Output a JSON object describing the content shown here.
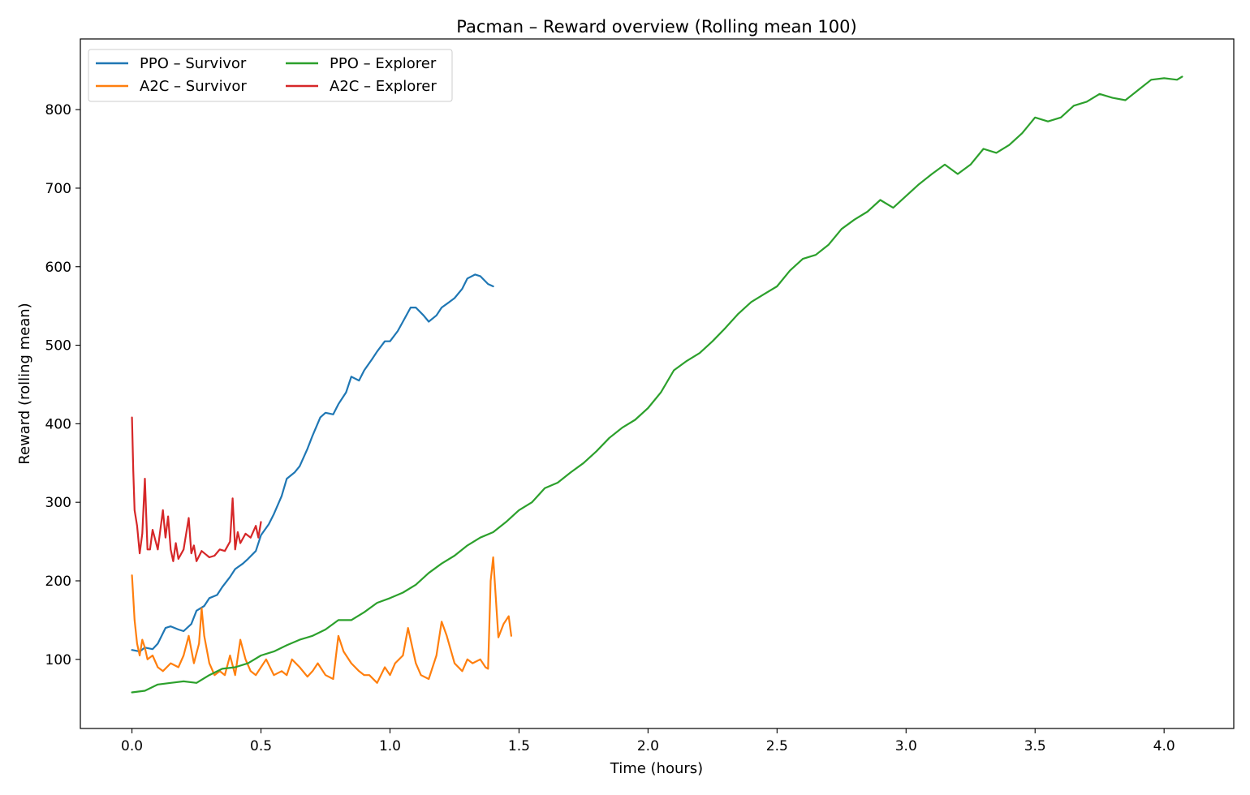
{
  "chart_data": {
    "type": "line",
    "title": "Pacman – Reward overview (Rolling mean 100)",
    "xlabel": "Time (hours)",
    "ylabel": "Reward (rolling mean)",
    "xlim": [
      -0.2,
      4.27
    ],
    "ylim": [
      12,
      890
    ],
    "xticks": [
      0.0,
      0.5,
      1.0,
      1.5,
      2.0,
      2.5,
      3.0,
      3.5,
      4.0
    ],
    "xtick_labels": [
      "0.0",
      "0.5",
      "1.0",
      "1.5",
      "2.0",
      "2.5",
      "3.0",
      "3.5",
      "4.0"
    ],
    "yticks": [
      100,
      200,
      300,
      400,
      500,
      600,
      700,
      800
    ],
    "ytick_labels": [
      "100",
      "200",
      "300",
      "400",
      "500",
      "600",
      "700",
      "800"
    ],
    "grid": false,
    "legend_position": "top-left",
    "series": [
      {
        "name": "PPO – Survivor",
        "color": "#1f77b4",
        "x": [
          0.0,
          0.03,
          0.05,
          0.08,
          0.1,
          0.13,
          0.15,
          0.18,
          0.2,
          0.23,
          0.25,
          0.28,
          0.3,
          0.33,
          0.35,
          0.38,
          0.4,
          0.43,
          0.45,
          0.48,
          0.5,
          0.53,
          0.55,
          0.58,
          0.6,
          0.63,
          0.65,
          0.68,
          0.7,
          0.73,
          0.75,
          0.78,
          0.8,
          0.83,
          0.85,
          0.88,
          0.9,
          0.93,
          0.95,
          0.98,
          1.0,
          1.03,
          1.05,
          1.08,
          1.1,
          1.13,
          1.15,
          1.18,
          1.2,
          1.23,
          1.25,
          1.28,
          1.3,
          1.33,
          1.35,
          1.38,
          1.4
        ],
        "y": [
          112,
          110,
          115,
          113,
          120,
          140,
          142,
          138,
          136,
          145,
          162,
          168,
          178,
          182,
          192,
          205,
          215,
          222,
          228,
          238,
          258,
          272,
          285,
          308,
          330,
          338,
          346,
          368,
          385,
          408,
          414,
          412,
          425,
          440,
          460,
          455,
          468,
          482,
          492,
          505,
          505,
          518,
          530,
          548,
          548,
          538,
          530,
          538,
          548,
          555,
          560,
          572,
          585,
          590,
          588,
          578,
          575
        ]
      },
      {
        "name": "A2C – Survivor",
        "color": "#ff7f0e",
        "x": [
          0.0,
          0.01,
          0.02,
          0.03,
          0.04,
          0.05,
          0.06,
          0.08,
          0.1,
          0.12,
          0.15,
          0.18,
          0.2,
          0.22,
          0.24,
          0.26,
          0.27,
          0.28,
          0.3,
          0.32,
          0.34,
          0.36,
          0.38,
          0.4,
          0.42,
          0.44,
          0.46,
          0.48,
          0.5,
          0.52,
          0.55,
          0.58,
          0.6,
          0.62,
          0.65,
          0.68,
          0.7,
          0.72,
          0.75,
          0.78,
          0.8,
          0.82,
          0.85,
          0.88,
          0.9,
          0.92,
          0.95,
          0.98,
          1.0,
          1.02,
          1.05,
          1.07,
          1.1,
          1.12,
          1.15,
          1.18,
          1.2,
          1.22,
          1.25,
          1.28,
          1.3,
          1.32,
          1.35,
          1.37,
          1.38,
          1.39,
          1.4,
          1.42,
          1.44,
          1.46,
          1.47
        ],
        "y": [
          207,
          150,
          120,
          105,
          125,
          115,
          100,
          105,
          90,
          85,
          95,
          90,
          105,
          130,
          95,
          120,
          165,
          130,
          95,
          80,
          85,
          80,
          105,
          80,
          125,
          100,
          85,
          80,
          90,
          100,
          80,
          85,
          80,
          100,
          90,
          78,
          85,
          95,
          80,
          75,
          130,
          110,
          95,
          85,
          80,
          80,
          70,
          90,
          80,
          95,
          105,
          140,
          95,
          80,
          75,
          105,
          148,
          130,
          95,
          85,
          100,
          95,
          100,
          90,
          88,
          200,
          230,
          128,
          145,
          155,
          130
        ]
      },
      {
        "name": "PPO – Explorer",
        "color": "#2ca02c",
        "x": [
          0.0,
          0.05,
          0.1,
          0.15,
          0.2,
          0.25,
          0.3,
          0.35,
          0.4,
          0.45,
          0.5,
          0.55,
          0.6,
          0.65,
          0.7,
          0.75,
          0.8,
          0.85,
          0.9,
          0.95,
          1.0,
          1.05,
          1.1,
          1.15,
          1.2,
          1.25,
          1.3,
          1.35,
          1.4,
          1.45,
          1.5,
          1.55,
          1.6,
          1.65,
          1.7,
          1.75,
          1.8,
          1.85,
          1.9,
          1.95,
          2.0,
          2.05,
          2.1,
          2.15,
          2.2,
          2.25,
          2.3,
          2.35,
          2.4,
          2.45,
          2.5,
          2.55,
          2.6,
          2.65,
          2.7,
          2.75,
          2.8,
          2.85,
          2.9,
          2.95,
          3.0,
          3.05,
          3.1,
          3.15,
          3.2,
          3.25,
          3.3,
          3.35,
          3.4,
          3.45,
          3.5,
          3.55,
          3.6,
          3.65,
          3.7,
          3.75,
          3.8,
          3.85,
          3.9,
          3.95,
          4.0,
          4.05,
          4.07
        ],
        "y": [
          58,
          60,
          68,
          70,
          72,
          70,
          80,
          88,
          90,
          95,
          105,
          110,
          118,
          125,
          130,
          138,
          150,
          150,
          160,
          172,
          178,
          185,
          195,
          210,
          222,
          232,
          245,
          255,
          262,
          275,
          290,
          300,
          318,
          325,
          338,
          350,
          365,
          382,
          395,
          405,
          420,
          440,
          468,
          480,
          490,
          505,
          522,
          540,
          555,
          565,
          575,
          595,
          610,
          615,
          628,
          648,
          660,
          670,
          685,
          675,
          690,
          705,
          718,
          730,
          718,
          730,
          750,
          745,
          755,
          770,
          790,
          785,
          790,
          805,
          810,
          820,
          815,
          812,
          825,
          838,
          840,
          838,
          842
        ]
      },
      {
        "name": "A2C – Explorer",
        "color": "#d62728",
        "x": [
          0.0,
          0.005,
          0.01,
          0.02,
          0.03,
          0.04,
          0.05,
          0.06,
          0.07,
          0.08,
          0.1,
          0.12,
          0.13,
          0.14,
          0.15,
          0.16,
          0.17,
          0.18,
          0.2,
          0.22,
          0.23,
          0.24,
          0.25,
          0.27,
          0.3,
          0.32,
          0.34,
          0.36,
          0.38,
          0.39,
          0.4,
          0.41,
          0.42,
          0.44,
          0.46,
          0.48,
          0.49,
          0.5
        ],
        "y": [
          408,
          340,
          290,
          270,
          235,
          260,
          330,
          240,
          240,
          265,
          240,
          290,
          255,
          282,
          240,
          225,
          248,
          228,
          240,
          280,
          235,
          245,
          225,
          238,
          230,
          232,
          240,
          238,
          250,
          305,
          240,
          262,
          248,
          260,
          255,
          270,
          255,
          275
        ]
      }
    ]
  }
}
